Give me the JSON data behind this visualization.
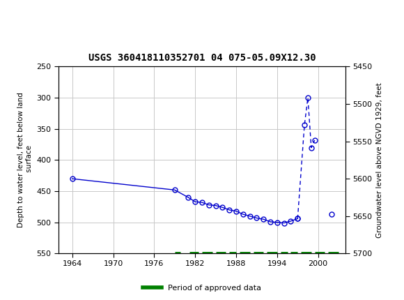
{
  "title": "USGS 360418110352701 04 075-05.09X12.30",
  "ylabel_left": "Depth to water level, feet below land\n surface",
  "ylabel_right": "Groundwater level above NGVD 1929, feet",
  "header_color": "#006633",
  "bg_color": "#ffffff",
  "plot_bg_color": "#ffffff",
  "grid_color": "#c8c8c8",
  "xlim": [
    1962,
    2004
  ],
  "ylim_left": [
    250,
    550
  ],
  "ylim_right": [
    5700,
    5450
  ],
  "xticks": [
    1964,
    1970,
    1976,
    1982,
    1988,
    1994,
    2000
  ],
  "yticks_left": [
    250,
    300,
    350,
    400,
    450,
    500,
    550
  ],
  "yticks_right": [
    5700,
    5650,
    5600,
    5550,
    5500,
    5450
  ],
  "solid_points": [
    [
      1964,
      430
    ],
    [
      1979,
      448
    ],
    [
      1981,
      460
    ],
    [
      1982,
      467
    ],
    [
      1983,
      468
    ],
    [
      1984,
      472
    ],
    [
      1985,
      473
    ],
    [
      1986,
      476
    ],
    [
      1987,
      480
    ],
    [
      1988,
      482
    ],
    [
      1989,
      487
    ],
    [
      1990,
      490
    ],
    [
      1991,
      493
    ],
    [
      1992,
      495
    ],
    [
      1993,
      499
    ],
    [
      1994,
      500
    ],
    [
      1995,
      501
    ],
    [
      1996,
      498
    ],
    [
      1997,
      494
    ]
  ],
  "dotted_points": [
    [
      1997,
      494
    ],
    [
      1998,
      344
    ],
    [
      1998.5,
      300
    ],
    [
      1999,
      380
    ],
    [
      1999.5,
      368
    ]
  ],
  "isolated_point": [
    2002,
    487
  ],
  "approved_periods": [
    [
      1979,
      1979.8
    ],
    [
      1981.2,
      1982.5
    ],
    [
      1983.0,
      1984.5
    ],
    [
      1985.0,
      1986.5
    ],
    [
      1987.0,
      1988.0
    ],
    [
      1988.5,
      1990.0
    ],
    [
      1990.5,
      1992.0
    ],
    [
      1992.5,
      1994.0
    ],
    [
      1994.5,
      1995.5
    ],
    [
      1996.0,
      1997.0
    ],
    [
      1997.5,
      1999.0
    ],
    [
      1999.5,
      2001.0
    ],
    [
      2001.5,
      2003.0
    ]
  ],
  "legend_label": "Period of approved data",
  "legend_color": "#008000",
  "data_color": "#0000cc",
  "marker_size": 5
}
